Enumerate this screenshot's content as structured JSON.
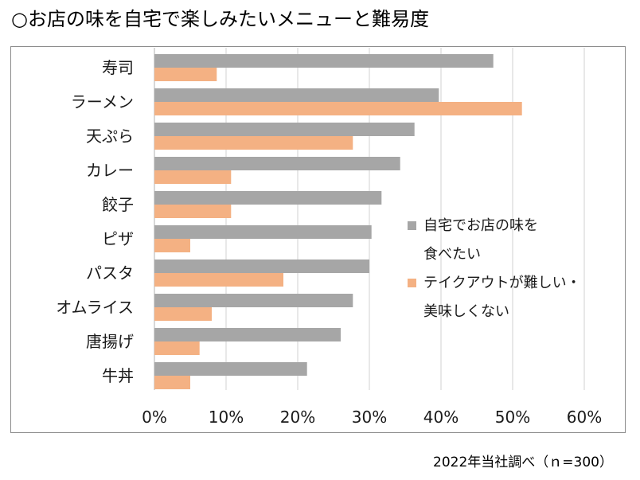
{
  "title": "○お店の味を自宅で楽しみたいメニューと難易度",
  "source": "2022年当社調べ（ｎ=300）",
  "colors": {
    "series1": "#a6a6a6",
    "series2": "#f4b183",
    "grid": "#d9d9d9",
    "axis": "#bfbfbf"
  },
  "chart_data": {
    "type": "bar",
    "orientation": "horizontal",
    "categories": [
      "寿司",
      "ラーメン",
      "天ぷら",
      "カレー",
      "餃子",
      "ピザ",
      "パスタ",
      "オムライス",
      "唐揚げ",
      "牛丼"
    ],
    "series": [
      {
        "name": "自宅でお店の味を食べたい",
        "values": [
          47.3,
          39.7,
          36.3,
          34.3,
          31.7,
          30.3,
          30.0,
          27.7,
          26.0,
          21.3
        ]
      },
      {
        "name": "テイクアウトが難しい・美味しくない",
        "values": [
          8.7,
          51.3,
          27.7,
          10.7,
          10.7,
          5.0,
          18.0,
          8.0,
          6.3,
          5.0
        ]
      }
    ],
    "xlim": [
      0,
      60
    ],
    "xticks": [
      "0%",
      "10%",
      "20%",
      "30%",
      "40%",
      "50%",
      "60%"
    ],
    "grid": true,
    "legend": {
      "position": "right",
      "series1_lines": [
        "自宅でお店の味を",
        "食べたい"
      ],
      "series2_lines": [
        "テイクアウトが難しい・",
        "美味しくない"
      ]
    }
  }
}
